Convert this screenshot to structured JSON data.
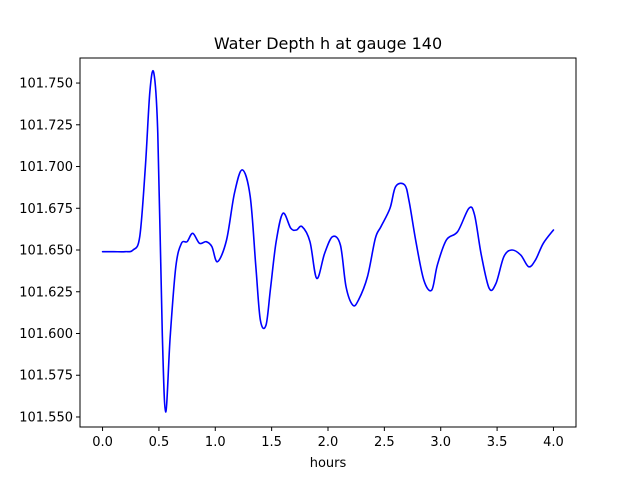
{
  "chart_data": {
    "type": "line",
    "title": "Water Depth h at gauge 140",
    "xlabel": "hours",
    "ylabel": "",
    "xlim": [
      -0.2,
      4.2
    ],
    "ylim": [
      101.544,
      101.765
    ],
    "grid": false,
    "x_ticks": [
      0.0,
      0.5,
      1.0,
      1.5,
      2.0,
      2.5,
      3.0,
      3.5,
      4.0
    ],
    "x_tick_labels": [
      "0.0",
      "0.5",
      "1.0",
      "1.5",
      "2.0",
      "2.5",
      "3.0",
      "3.5",
      "4.0"
    ],
    "y_ticks": [
      101.55,
      101.575,
      101.6,
      101.625,
      101.65,
      101.675,
      101.7,
      101.725,
      101.75
    ],
    "y_tick_labels": [
      "101.550",
      "101.575",
      "101.600",
      "101.625",
      "101.650",
      "101.675",
      "101.700",
      "101.725",
      "101.750"
    ],
    "series": [
      {
        "color": "#0000ff",
        "x": [
          0.0,
          0.1,
          0.2,
          0.27,
          0.33,
          0.38,
          0.42,
          0.455,
          0.49,
          0.53,
          0.56,
          0.6,
          0.65,
          0.7,
          0.75,
          0.8,
          0.86,
          0.92,
          0.97,
          1.02,
          1.1,
          1.17,
          1.24,
          1.31,
          1.36,
          1.4,
          1.45,
          1.49,
          1.54,
          1.6,
          1.67,
          1.72,
          1.77,
          1.84,
          1.9,
          1.97,
          2.04,
          2.11,
          2.16,
          2.22,
          2.27,
          2.35,
          2.42,
          2.47,
          2.55,
          2.6,
          2.68,
          2.72,
          2.78,
          2.85,
          2.92,
          2.97,
          3.05,
          3.15,
          3.25,
          3.3,
          3.36,
          3.43,
          3.49,
          3.56,
          3.63,
          3.71,
          3.78,
          3.84,
          3.91,
          4.0
        ],
        "y": [
          101.649,
          101.649,
          101.649,
          101.65,
          101.658,
          101.7,
          101.745,
          101.756,
          101.72,
          101.6,
          101.553,
          101.598,
          101.64,
          101.654,
          101.655,
          101.66,
          101.654,
          101.655,
          101.652,
          101.643,
          101.656,
          101.684,
          101.698,
          101.682,
          101.64,
          101.608,
          101.605,
          101.627,
          101.655,
          101.672,
          101.663,
          101.662,
          101.664,
          101.655,
          101.633,
          101.648,
          101.658,
          101.653,
          101.628,
          101.617,
          101.62,
          101.634,
          101.657,
          101.664,
          101.675,
          101.688,
          101.689,
          101.679,
          101.655,
          101.632,
          101.626,
          101.641,
          101.656,
          101.661,
          101.675,
          101.671,
          101.647,
          101.627,
          101.63,
          101.646,
          101.65,
          101.647,
          101.64,
          101.644,
          101.654,
          101.662
        ]
      }
    ]
  }
}
